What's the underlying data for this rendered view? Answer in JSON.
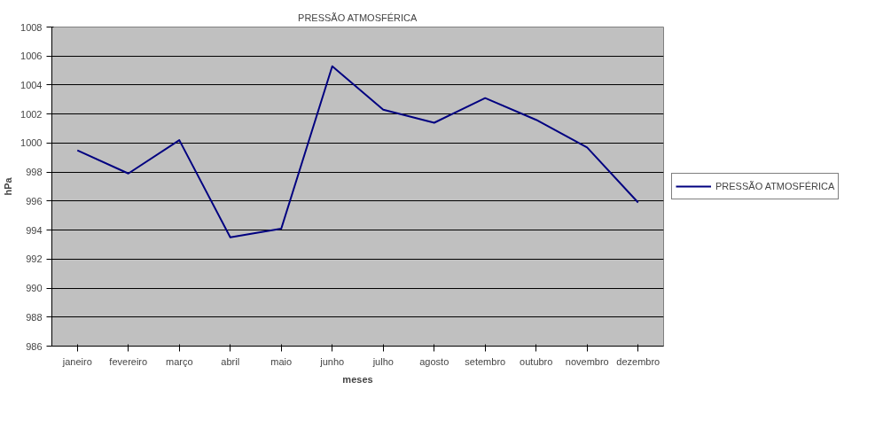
{
  "chart_data": {
    "type": "line",
    "title": "PRESSÃO ATMOSFÉRICA",
    "xlabel": "meses",
    "ylabel": "hPa",
    "categories": [
      "janeiro",
      "fevereiro",
      "março",
      "abril",
      "maio",
      "junho",
      "julho",
      "agosto",
      "setembro",
      "outubro",
      "novembro",
      "dezembro"
    ],
    "series": [
      {
        "name": "PRESSÃO ATMOSFÉRICA",
        "color": "#000080",
        "values": [
          999.5,
          997.9,
          1000.2,
          993.5,
          994.1,
          1005.3,
          1002.3,
          1001.4,
          1003.1,
          1001.6,
          999.7,
          995.9
        ]
      }
    ],
    "ylim": [
      986,
      1008
    ],
    "yticks": [
      986,
      988,
      990,
      992,
      994,
      996,
      998,
      1000,
      1002,
      1004,
      1006,
      1008
    ],
    "grid": "y",
    "legend": "right",
    "line_style": "solid"
  }
}
